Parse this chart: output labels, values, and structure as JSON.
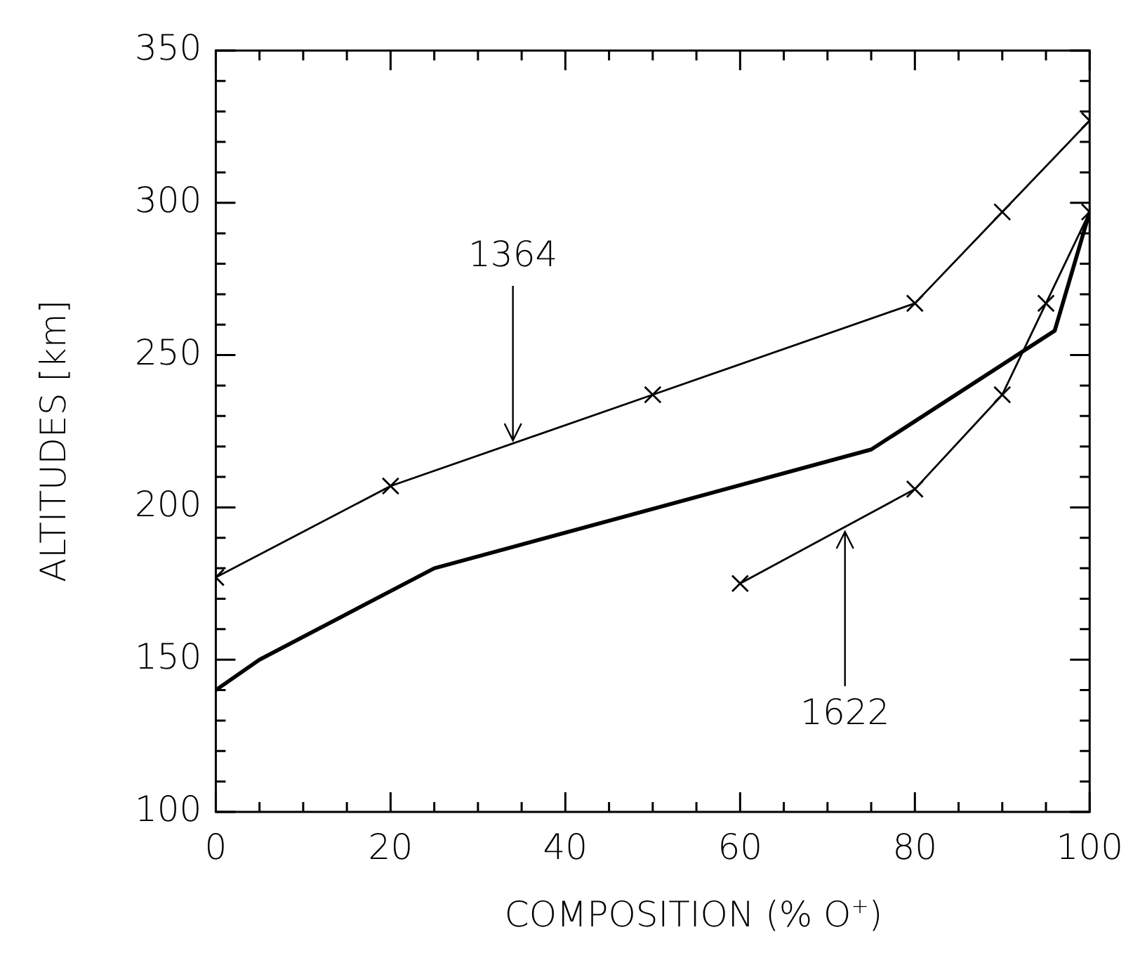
{
  "chart_data": {
    "type": "line",
    "xlabel": "COMPOSITION (% O$^{+}$)",
    "ylabel": "ALTITUDES [km]",
    "xlim": [
      0,
      100
    ],
    "ylim": [
      100,
      350
    ],
    "xticks": [
      0,
      {
        "value": 5,
        "label": null
      },
      {
        "value": 10,
        "label": null
      },
      {
        "value": 15,
        "label": null
      },
      20,
      {
        "value": 25,
        "label": null
      },
      {
        "value": 30,
        "label": null
      },
      {
        "value": 35,
        "label": null
      },
      40,
      {
        "value": 45,
        "label": null
      },
      {
        "value": 50,
        "label": null
      },
      {
        "value": 55,
        "label": null
      },
      60,
      {
        "value": 65,
        "label": null
      },
      {
        "value": 70,
        "label": null
      },
      {
        "value": 75,
        "label": null
      },
      80,
      {
        "value": 85,
        "label": null
      },
      {
        "value": 90,
        "label": null
      },
      {
        "value": 95,
        "label": null
      },
      100
    ],
    "yticks": [
      100,
      {
        "value": 110,
        "label": null
      },
      {
        "value": 120,
        "label": null
      },
      {
        "value": 130,
        "label": null
      },
      {
        "value": 140,
        "label": null
      },
      150,
      {
        "value": 160,
        "label": null
      },
      {
        "value": 170,
        "label": null
      },
      {
        "value": 180,
        "label": null
      },
      {
        "value": 190,
        "label": null
      },
      200,
      {
        "value": 210,
        "label": null
      },
      {
        "value": 220,
        "label": null
      },
      {
        "value": 230,
        "label": null
      },
      {
        "value": 240,
        "label": null
      },
      250,
      {
        "value": 260,
        "label": null
      },
      {
        "value": 270,
        "label": null
      },
      {
        "value": 280,
        "label": null
      },
      {
        "value": 290,
        "label": null
      },
      300,
      {
        "value": 310,
        "label": null
      },
      {
        "value": 320,
        "label": null
      },
      {
        "value": 330,
        "label": null
      },
      {
        "value": 340,
        "label": null
      },
      350
    ],
    "grid": false,
    "legend": false,
    "series": [
      {
        "color": "#000000",
        "marker": "cross",
        "x": [
          0,
          20,
          50,
          80,
          90,
          100
        ],
        "values": [
          177,
          207,
          237,
          267,
          297,
          327
        ]
      },
      {
        "color": "#000000",
        "marker": "none",
        "x": [
          0,
          5,
          25,
          75,
          96,
          100
        ],
        "values": [
          140,
          150,
          180,
          219,
          258,
          297
        ]
      },
      {
        "color": "#000000",
        "marker": "cross",
        "x": [
          60,
          80,
          90,
          95,
          100
        ],
        "values": [
          175,
          206,
          237,
          267,
          297
        ]
      }
    ],
    "annotations": [
      {
        "text": "1364",
        "x": 34,
        "y": 222
      },
      {
        "text": "1622",
        "x": 72,
        "y": 192
      }
    ]
  }
}
